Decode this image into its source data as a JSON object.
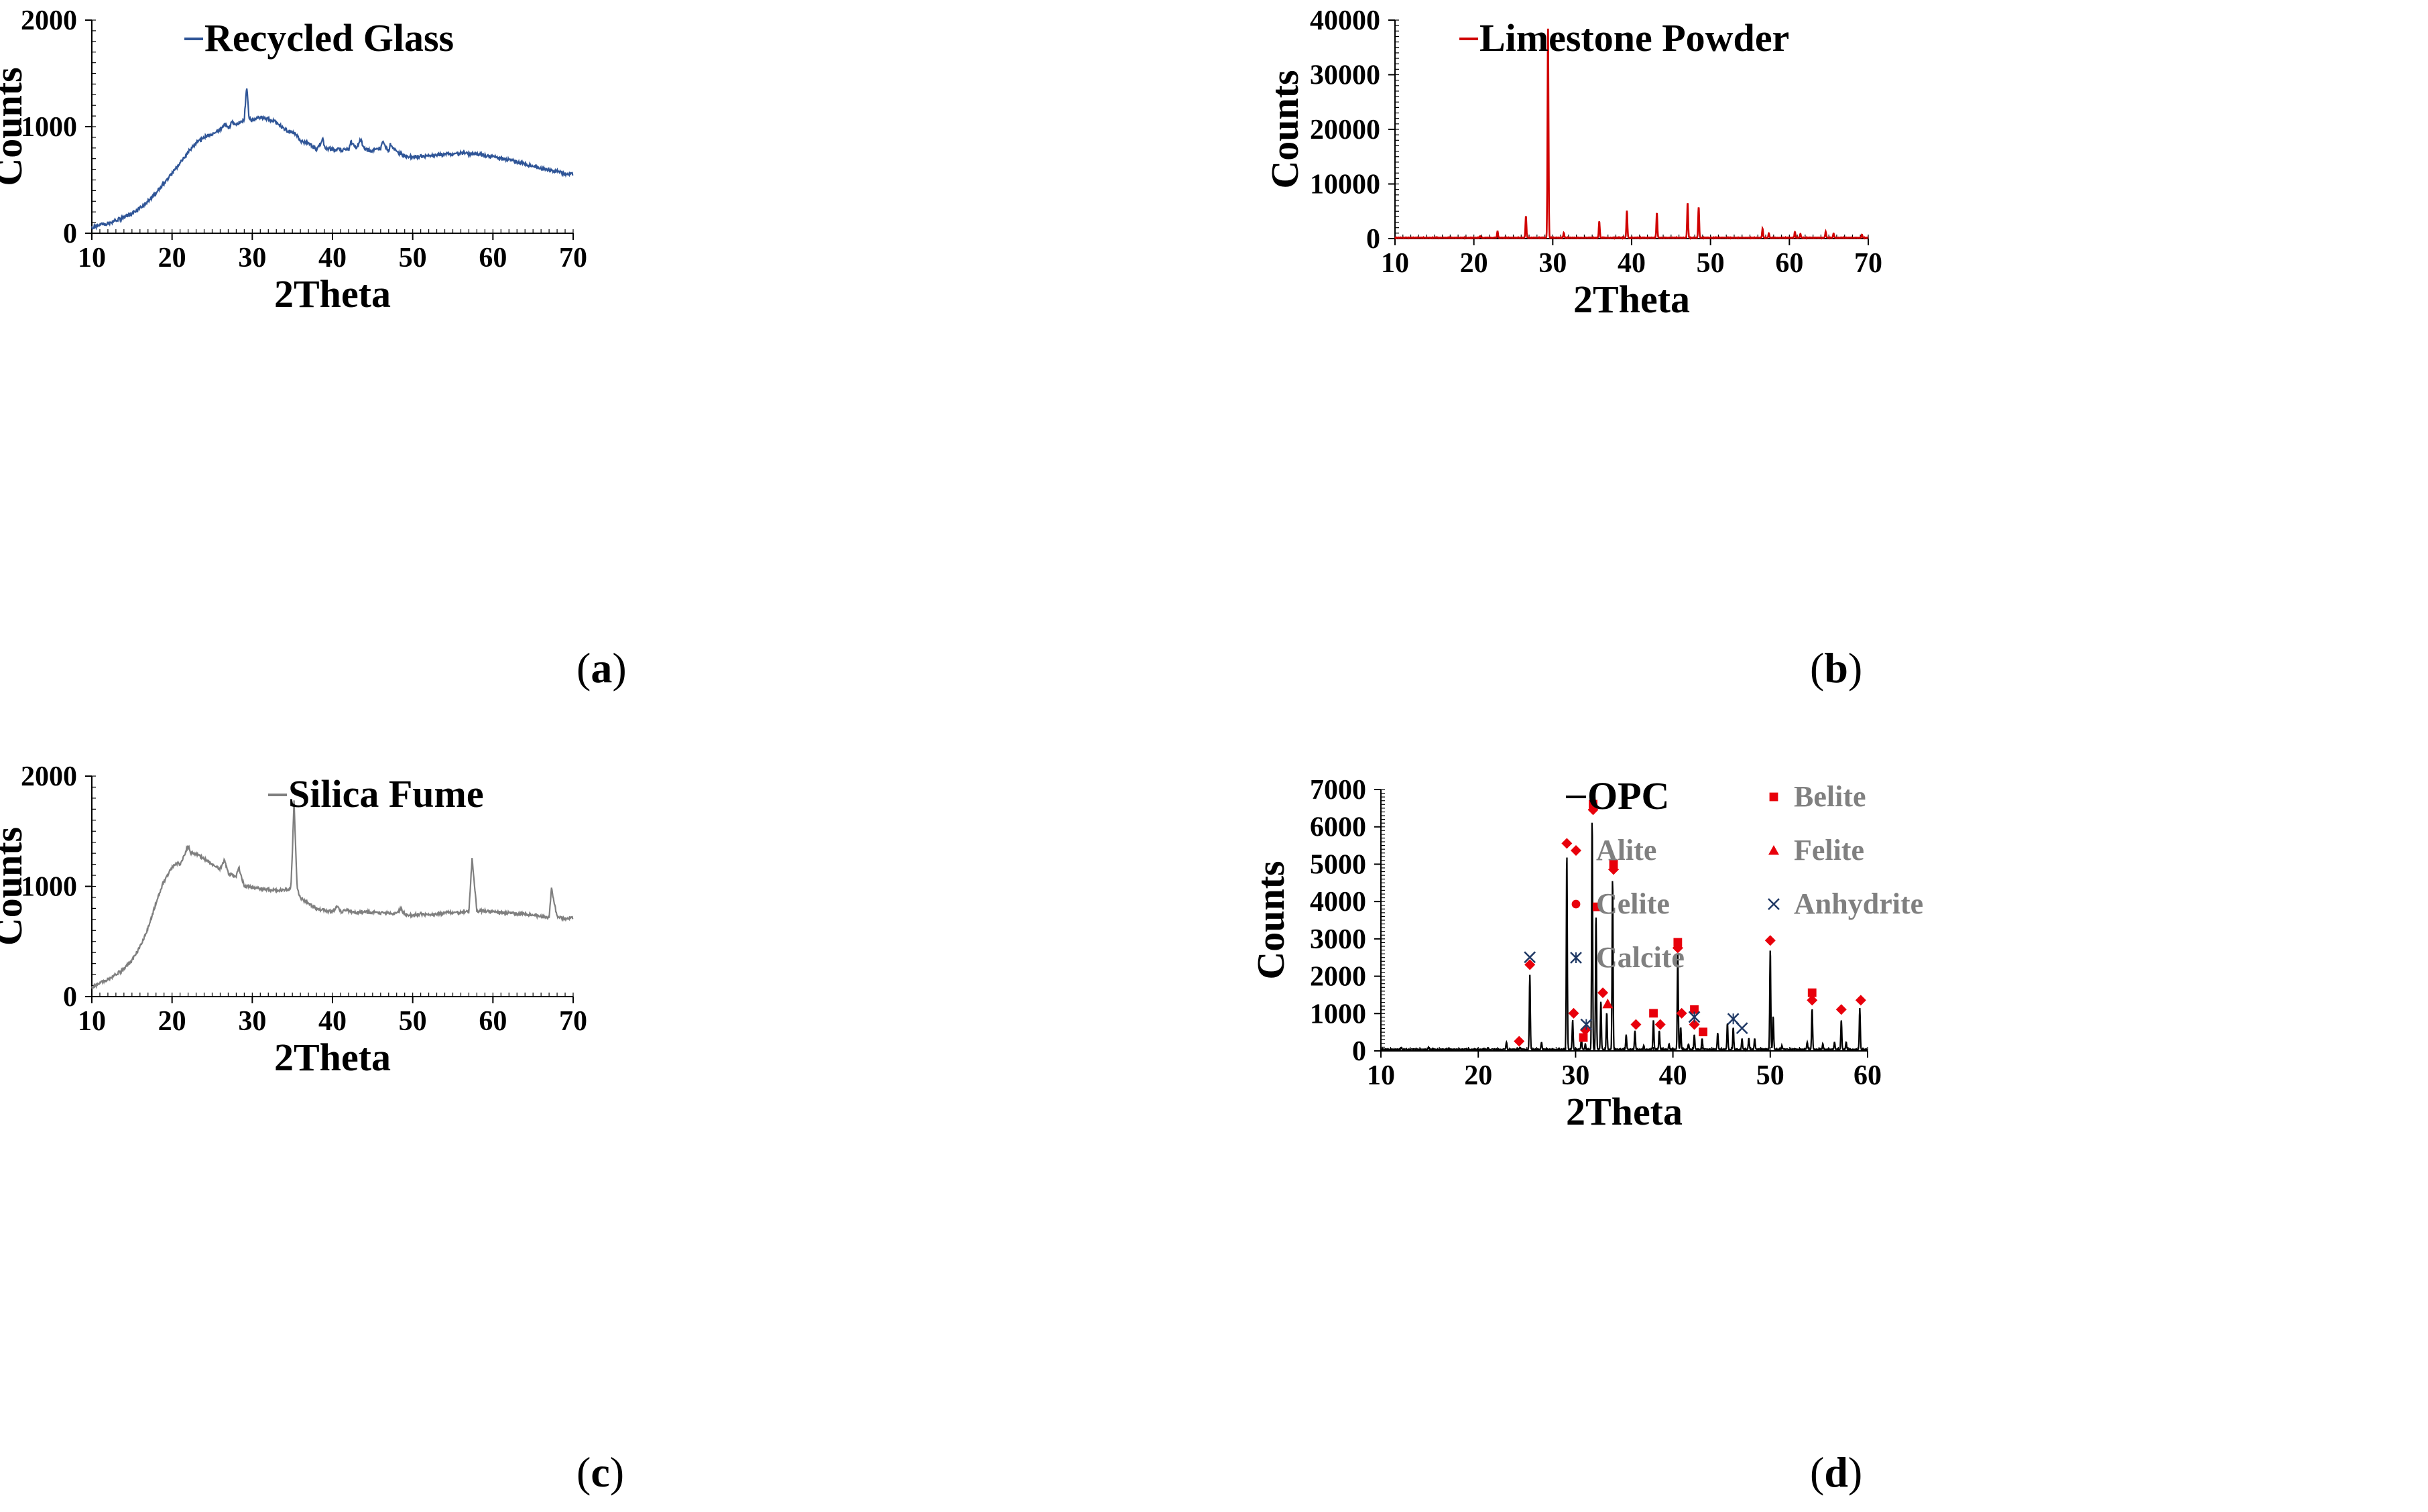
{
  "figure": {
    "panels": [
      {
        "id": "a",
        "caption_letter": "a"
      },
      {
        "id": "b",
        "caption_letter": "b"
      },
      {
        "id": "c",
        "caption_letter": "c"
      },
      {
        "id": "d",
        "caption_letter": "d"
      }
    ]
  },
  "chart_data": [
    {
      "type": "line",
      "id": "a",
      "title": "",
      "xlabel": "2Theta",
      "ylabel": "Counts",
      "xlim": [
        10,
        70
      ],
      "ylim": [
        0,
        2000
      ],
      "xticks": [
        10,
        20,
        30,
        40,
        50,
        60,
        70
      ],
      "yticks": [
        0,
        1000,
        2000
      ],
      "legend_position": "top-right",
      "color": "#2F5597",
      "series": [
        {
          "name": "Recycled Glass",
          "x": [
            10,
            11,
            12,
            13,
            14,
            15,
            16,
            17,
            18,
            19,
            20,
            21,
            22,
            23,
            24,
            25,
            26,
            26.5,
            27,
            27.5,
            28,
            28.5,
            29,
            29.3,
            29.6,
            30,
            31,
            32,
            33,
            34,
            35,
            35.5,
            36,
            37,
            38,
            38.8,
            39,
            40,
            41,
            42,
            42.3,
            43,
            43.5,
            44,
            45,
            46,
            46.3,
            47,
            47.2,
            48,
            49,
            50,
            51,
            52,
            53,
            54,
            55,
            56,
            57,
            58,
            59,
            60,
            61,
            62,
            63,
            64,
            65,
            66,
            67,
            68,
            69,
            70
          ],
          "y": [
            50,
            75,
            95,
            120,
            150,
            185,
            235,
            300,
            380,
            470,
            560,
            660,
            760,
            840,
            900,
            930,
            975,
            1020,
            985,
            1040,
            1010,
            1050,
            1060,
            1390,
            1070,
            1060,
            1090,
            1070,
            1040,
            980,
            940,
            930,
            870,
            840,
            790,
            880,
            800,
            790,
            780,
            780,
            860,
            800,
            880,
            790,
            770,
            800,
            860,
            760,
            840,
            760,
            730,
            720,
            720,
            725,
            730,
            740,
            740,
            750,
            745,
            740,
            730,
            720,
            700,
            690,
            670,
            650,
            630,
            610,
            600,
            580,
            560,
            550
          ]
        }
      ]
    },
    {
      "type": "line",
      "id": "b",
      "title": "",
      "xlabel": "2Theta",
      "ylabel": "Counts",
      "xlim": [
        10,
        70
      ],
      "ylim": [
        0,
        40000
      ],
      "xticks": [
        10,
        20,
        30,
        40,
        50,
        60,
        70
      ],
      "yticks": [
        0,
        10000,
        20000,
        30000,
        40000
      ],
      "legend_position": "top-right",
      "color": "#D00000",
      "series": [
        {
          "name": "Limestone Powder",
          "peaks": [
            [
              20.8,
              300
            ],
            [
              23.0,
              1200
            ],
            [
              26.6,
              4000
            ],
            [
              29.4,
              38800
            ],
            [
              31.4,
              900
            ],
            [
              35.9,
              3000
            ],
            [
              39.4,
              5000
            ],
            [
              43.2,
              4600
            ],
            [
              47.1,
              6400
            ],
            [
              48.5,
              5600
            ],
            [
              56.6,
              1700
            ],
            [
              57.4,
              800
            ],
            [
              60.7,
              1100
            ],
            [
              61.4,
              700
            ],
            [
              64.6,
              1100
            ],
            [
              65.6,
              800
            ],
            [
              69.2,
              600
            ]
          ]
        }
      ]
    },
    {
      "type": "line",
      "id": "c",
      "title": "",
      "xlabel": "2Theta",
      "ylabel": "Counts",
      "xlim": [
        10,
        70
      ],
      "ylim": [
        0,
        2000
      ],
      "xticks": [
        10,
        20,
        30,
        40,
        50,
        60,
        70
      ],
      "yticks": [
        0,
        1000,
        2000
      ],
      "legend_position": "top-right",
      "color": "#7F7F7F",
      "series": [
        {
          "name": "Silica Fume",
          "x": [
            10,
            11,
            12,
            13,
            14,
            15,
            16,
            17,
            18,
            19,
            20,
            20.8,
            21,
            21.5,
            22,
            22.3,
            23,
            24,
            25,
            26,
            26.5,
            27,
            28,
            28.3,
            29,
            30,
            31,
            32,
            33,
            34,
            34.8,
            35,
            35.2,
            35.6,
            36,
            37,
            38,
            39,
            40,
            40.5,
            41,
            42,
            43,
            44,
            45,
            46,
            47,
            48,
            48.5,
            49,
            50,
            51,
            52,
            53,
            54,
            55,
            56,
            57,
            57.4,
            58,
            59,
            60,
            61,
            62,
            63,
            64,
            65,
            66,
            67,
            67.3,
            68,
            69,
            70
          ],
          "y": [
            80,
            120,
            160,
            200,
            250,
            330,
            450,
            620,
            850,
            1050,
            1170,
            1220,
            1190,
            1280,
            1370,
            1300,
            1290,
            1250,
            1200,
            1160,
            1240,
            1120,
            1080,
            1180,
            1000,
            990,
            980,
            970,
            960,
            970,
            980,
            1300,
            1770,
            980,
            900,
            840,
            800,
            780,
            770,
            820,
            770,
            780,
            760,
            770,
            760,
            760,
            760,
            750,
            800,
            750,
            740,
            750,
            740,
            745,
            760,
            760,
            760,
            770,
            1250,
            770,
            780,
            770,
            760,
            760,
            750,
            750,
            740,
            730,
            720,
            990,
            720,
            710,
            710
          ]
        }
      ]
    },
    {
      "type": "line",
      "id": "d",
      "title": "",
      "xlabel": "2Theta",
      "ylabel": "Counts",
      "xlim": [
        10,
        60
      ],
      "ylim": [
        0,
        7000
      ],
      "xticks": [
        10,
        20,
        30,
        40,
        50,
        60
      ],
      "yticks": [
        0,
        1000,
        2000,
        3000,
        4000,
        5000,
        6000,
        7000
      ],
      "legend_position": "top-right",
      "color": "#000000",
      "series": [
        {
          "name": "OPC",
          "peaks": [
            [
              12.1,
              50
            ],
            [
              14.9,
              60
            ],
            [
              21.0,
              40
            ],
            [
              22.9,
              200
            ],
            [
              24.3,
              50
            ],
            [
              25.3,
              2000
            ],
            [
              26.5,
              200
            ],
            [
              29.1,
              5250
            ],
            [
              29.7,
              800
            ],
            [
              30.6,
              300
            ],
            [
              31.0,
              150
            ],
            [
              31.7,
              6200
            ],
            [
              32.1,
              3600
            ],
            [
              32.6,
              1300
            ],
            [
              33.2,
              1000
            ],
            [
              33.8,
              4600
            ],
            [
              35.2,
              400
            ],
            [
              36.1,
              500
            ],
            [
              37.0,
              100
            ],
            [
              38.0,
              800
            ],
            [
              38.6,
              500
            ],
            [
              39.6,
              150
            ],
            [
              40.5,
              2600
            ],
            [
              40.8,
              600
            ],
            [
              41.6,
              150
            ],
            [
              42.2,
              400
            ],
            [
              43.0,
              300
            ],
            [
              44.6,
              450
            ],
            [
              45.6,
              700
            ],
            [
              46.2,
              600
            ],
            [
              47.1,
              300
            ],
            [
              47.8,
              300
            ],
            [
              48.4,
              300
            ],
            [
              50.0,
              2700
            ],
            [
              50.3,
              900
            ],
            [
              51.2,
              100
            ],
            [
              53.8,
              200
            ],
            [
              54.3,
              1100
            ],
            [
              55.4,
              150
            ],
            [
              56.6,
              200
            ],
            [
              57.3,
              800
            ],
            [
              57.8,
              200
            ],
            [
              59.2,
              1100
            ]
          ]
        }
      ],
      "markers": [
        {
          "phase": "Alite",
          "points": [
            [
              24.2,
              150
            ],
            [
              25.3,
              2200
            ],
            [
              29.1,
              5450
            ],
            [
              29.8,
              900
            ],
            [
              31.0,
              450
            ],
            [
              31.8,
              6350
            ],
            [
              32.8,
              1450
            ],
            [
              33.9,
              4750
            ],
            [
              36.2,
              600
            ],
            [
              38.7,
              600
            ],
            [
              40.5,
              2650
            ],
            [
              40.9,
              900
            ],
            [
              42.2,
              600
            ],
            [
              50.0,
              2850
            ],
            [
              54.3,
              1250
            ],
            [
              57.3,
              1000
            ],
            [
              59.3,
              1250
            ]
          ]
        },
        {
          "phase": "Belite",
          "points": [
            [
              30.8,
              250
            ],
            [
              31.8,
              6500
            ],
            [
              32.2,
              3750
            ],
            [
              33.9,
              4900
            ],
            [
              38.0,
              900
            ],
            [
              40.5,
              2800
            ],
            [
              42.2,
              1000
            ],
            [
              43.1,
              400
            ],
            [
              54.3,
              1450
            ]
          ]
        },
        {
          "phase": "Felite",
          "points": [
            [
              33.3,
              1150
            ]
          ]
        },
        {
          "phase": "Celite",
          "points": []
        },
        {
          "phase": "Calcite",
          "points": [
            [
              31.1,
              600
            ],
            [
              42.2,
              800
            ],
            [
              46.2,
              750
            ]
          ]
        },
        {
          "phase": "Anhydrite",
          "points": [
            [
              25.3,
              2400
            ],
            [
              47.1,
              500
            ]
          ]
        }
      ],
      "legend_entries": [
        {
          "label": "OPC",
          "symbol": "line"
        },
        {
          "label": "Alite",
          "symbol": "diamond"
        },
        {
          "label": "Celite",
          "symbol": "circle"
        },
        {
          "label": "Calcite",
          "symbol": "star-x"
        },
        {
          "label": "Belite",
          "symbol": "square"
        },
        {
          "label": "Felite",
          "symbol": "triangle"
        },
        {
          "label": "Anhydrite",
          "symbol": "x"
        }
      ],
      "marker_colors": {
        "red": "#E8000B",
        "navy": "#1F3864",
        "legend_text": "#808080"
      }
    }
  ]
}
